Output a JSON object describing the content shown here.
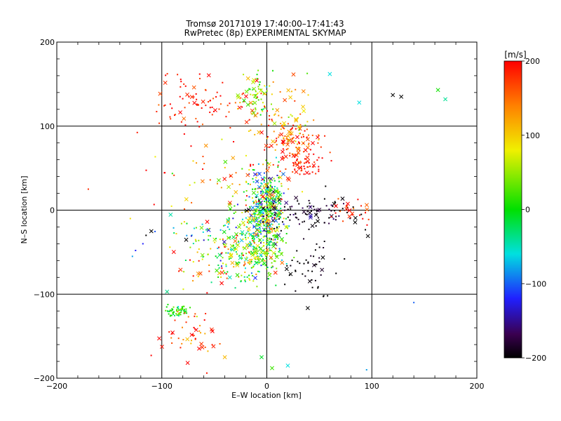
{
  "chart_data": {
    "type": "scatter",
    "title": "Tromsø 20171019 17:40:00–17:41:43",
    "subtitle": "RwPretec (8p) EXPERIMENTAL SKYMAP",
    "xlabel": "E–W location [km]",
    "ylabel": "N–S location [km]",
    "xlim": [
      -200,
      200
    ],
    "ylim": [
      -200,
      200
    ],
    "xticks": [
      "-200",
      "-100",
      "0",
      "100",
      "200"
    ],
    "yticks": [
      "-200",
      "-100",
      "0",
      "100",
      "200"
    ],
    "grid": true,
    "colorbar": {
      "unit": "[m/s]",
      "range": [
        -200,
        200
      ],
      "ticks": [
        "-200",
        "-100",
        "0",
        "100",
        "200"
      ],
      "palette": "rainbow: black, purple, blue, cyan, green, yellow, orange, red"
    },
    "clusters": [
      {
        "cx": 0,
        "cy": 5,
        "sx": 9,
        "sy": 22,
        "n": 380,
        "vmean": 0,
        "vsd": 90,
        "markers": "mixed"
      },
      {
        "cx": 25,
        "cy": 85,
        "sx": 12,
        "sy": 10,
        "n": 110,
        "vmean": 160,
        "vsd": 40,
        "markers": "mixed"
      },
      {
        "cx": 35,
        "cy": 55,
        "sx": 10,
        "sy": 8,
        "n": 70,
        "vmean": 190,
        "vsd": 20,
        "markers": "mixed"
      },
      {
        "cx": -60,
        "cy": 130,
        "sx": 25,
        "sy": 18,
        "n": 90,
        "vmean": 185,
        "vsd": 25,
        "markers": "mixed"
      },
      {
        "cx": -10,
        "cy": 140,
        "sx": 8,
        "sy": 10,
        "n": 55,
        "vmean": 40,
        "vsd": 40,
        "markers": "mixed"
      },
      {
        "cx": 10,
        "cy": 120,
        "sx": 15,
        "sy": 20,
        "n": 60,
        "vmean": 120,
        "vsd": 60,
        "markers": "mixed"
      },
      {
        "cx": -20,
        "cy": -40,
        "sx": 18,
        "sy": 25,
        "n": 220,
        "vmean": 20,
        "vsd": 70,
        "markers": "mixed"
      },
      {
        "cx": -5,
        "cy": -50,
        "sx": 12,
        "sy": 15,
        "n": 120,
        "vmean": 40,
        "vsd": 50,
        "markers": "mixed"
      },
      {
        "cx": 40,
        "cy": -5,
        "sx": 25,
        "sy": 10,
        "n": 100,
        "vmean": -190,
        "vsd": 20,
        "markers": "mixed"
      },
      {
        "cx": 40,
        "cy": -70,
        "sx": 15,
        "sy": 15,
        "n": 50,
        "vmean": -200,
        "vsd": 10,
        "markers": "mixed"
      },
      {
        "cx": -55,
        "cy": -60,
        "sx": 20,
        "sy": 20,
        "n": 60,
        "vmean": 100,
        "vsd": 100,
        "markers": "mixed"
      },
      {
        "cx": -85,
        "cy": -120,
        "sx": 6,
        "sy": 3,
        "n": 60,
        "vmean": 10,
        "vsd": 25,
        "markers": "dot"
      },
      {
        "cx": -75,
        "cy": -150,
        "sx": 15,
        "sy": 15,
        "n": 50,
        "vmean": 170,
        "vsd": 40,
        "markers": "mixed"
      },
      {
        "cx": -40,
        "cy": 40,
        "sx": 30,
        "sy": 20,
        "n": 60,
        "vmean": 150,
        "vsd": 70,
        "markers": "mixed"
      },
      {
        "cx": 80,
        "cy": 5,
        "sx": 10,
        "sy": 10,
        "n": 25,
        "vmean": 180,
        "vsd": 30,
        "markers": "mixed"
      },
      {
        "cx": -60,
        "cy": -25,
        "sx": 15,
        "sy": 10,
        "n": 30,
        "vmean": 0,
        "vsd": 120,
        "markers": "mixed"
      }
    ],
    "points": [
      {
        "x": 120,
        "y": 137,
        "v": -200,
        "m": "x"
      },
      {
        "x": 128,
        "y": 135,
        "v": -200,
        "m": "x"
      },
      {
        "x": 163,
        "y": 143,
        "v": 5,
        "m": "x"
      },
      {
        "x": 170,
        "y": 132,
        "v": -40,
        "m": "x"
      },
      {
        "x": 88,
        "y": 128,
        "v": -60,
        "m": "x"
      },
      {
        "x": 60,
        "y": 162,
        "v": -60,
        "m": "x"
      },
      {
        "x": -110,
        "y": -25,
        "v": -200,
        "m": "x"
      },
      {
        "x": -115,
        "y": -30,
        "v": -200,
        "m": "d"
      },
      {
        "x": -118,
        "y": -40,
        "v": -120,
        "m": "d"
      },
      {
        "x": -125,
        "y": -48,
        "v": -120,
        "m": "d"
      },
      {
        "x": -128,
        "y": -55,
        "v": -80,
        "m": "d"
      },
      {
        "x": -170,
        "y": 25,
        "v": 180,
        "m": "d"
      },
      {
        "x": -95,
        "y": -97,
        "v": -40,
        "m": "x"
      },
      {
        "x": 20,
        "y": -185,
        "v": -60,
        "m": "x"
      },
      {
        "x": 5,
        "y": -188,
        "v": 20,
        "m": "x"
      },
      {
        "x": -5,
        "y": -175,
        "v": -10,
        "m": "x"
      },
      {
        "x": -40,
        "y": -175,
        "v": 110,
        "m": "x"
      },
      {
        "x": 140,
        "y": -110,
        "v": -100,
        "m": "d"
      },
      {
        "x": -130,
        "y": -10,
        "v": 90,
        "m": "d"
      },
      {
        "x": 95,
        "y": -190,
        "v": -80,
        "m": "d"
      }
    ]
  }
}
